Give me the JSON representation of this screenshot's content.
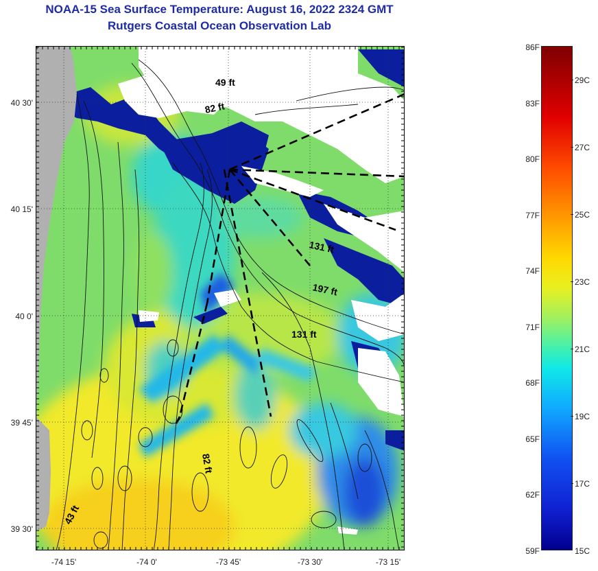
{
  "title": {
    "line1": "NOAA-15 Sea Surface Temperature:  August 16, 2022 2324 GMT",
    "line2": "Rutgers Coastal Ocean Observation Lab"
  },
  "map": {
    "lat_labels": [
      "40 30'",
      "40 15'",
      "40 0'",
      "39 45'",
      "39 30'"
    ],
    "lon_labels": [
      "-74 15'",
      "-74 0'",
      "-73 45'",
      "-73 30'",
      "-73 15'"
    ],
    "depth_labels": [
      "49 ft",
      "82 ft",
      "131 ft",
      "197 ft",
      "131 ft",
      "82 ft",
      "43 ft"
    ],
    "land_color": "#b0b0b0",
    "cloud_color": "#ffffff"
  },
  "colorbar": {
    "fahrenheit_labels": [
      "86F",
      "83F",
      "80F",
      "77F",
      "74F",
      "71F",
      "68F",
      "65F",
      "62F",
      "59F"
    ],
    "celsius_labels": [
      "29C",
      "27C",
      "25C",
      "23C",
      "21C",
      "19C",
      "17C",
      "15C"
    ],
    "range_f": [
      59,
      86
    ],
    "colormap": "jet"
  }
}
